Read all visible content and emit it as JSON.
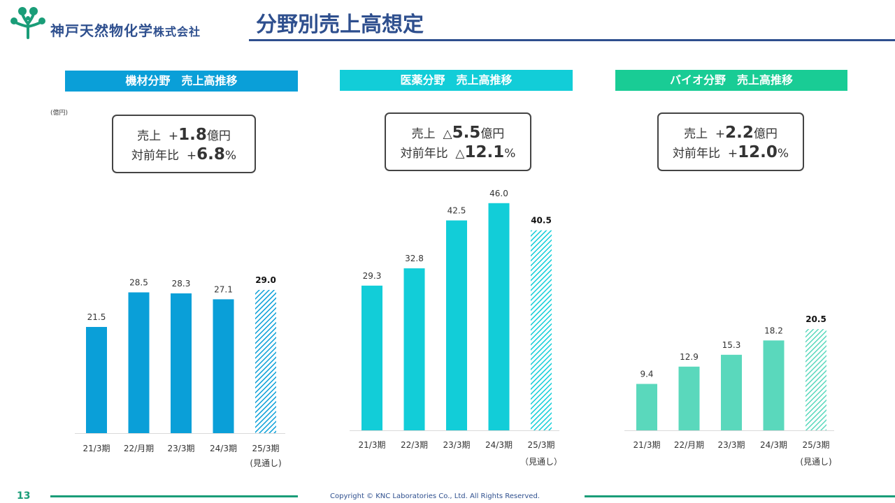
{
  "header": {
    "company_name": "神戸天然物化学",
    "company_suffix": "株式会社",
    "page_title": "分野別売上高想定"
  },
  "unit_label": "(億円)",
  "colors": {
    "brand_navy": "#2e4f8e",
    "brand_green": "#1a9d78",
    "equipment": "#0a9fd8",
    "pharma": "#12cdd8",
    "bio": "#5ad8bc",
    "bio_header": "#19cc95"
  },
  "panels": [
    {
      "header": "機材分野　売上高推移",
      "callout": {
        "sales_label": "売上",
        "sales_sign": "+",
        "sales_value": "1.8",
        "sales_unit": "億円",
        "yoy_label": "対前年比",
        "yoy_sign": "+",
        "yoy_value": "6.8",
        "yoy_unit": "%"
      }
    },
    {
      "header": "医薬分野　売上高推移",
      "callout": {
        "sales_label": "売上",
        "sales_sign": "△",
        "sales_value": "5.5",
        "sales_unit": "億円",
        "yoy_label": "対前年比",
        "yoy_sign": "△",
        "yoy_value": "12.1",
        "yoy_unit": "%"
      }
    },
    {
      "header": "バイオ分野　売上高推移",
      "callout": {
        "sales_label": "売上",
        "sales_sign": "+",
        "sales_value": "2.2",
        "sales_unit": "億円",
        "yoy_label": "対前年比",
        "yoy_sign": "+",
        "yoy_value": "12.0",
        "yoy_unit": "%"
      }
    }
  ],
  "chart_data": [
    {
      "type": "bar",
      "title": "機材分野　売上高推移",
      "categories": [
        "21/3期",
        "22/月期",
        "23/3期",
        "24/3期",
        "25/3期"
      ],
      "forecast_note": "(見通し)",
      "values": [
        21.5,
        28.5,
        28.3,
        27.1,
        29.0
      ],
      "value_labels": [
        "21.5",
        "28.5",
        "28.3",
        "27.1",
        "29.0"
      ],
      "forecast_index": 4,
      "color": "#0a9fd8",
      "ylabel": "(億円)"
    },
    {
      "type": "bar",
      "title": "医薬分野　売上高推移",
      "categories": [
        "21/3期",
        "22/3期",
        "23/3期",
        "24/3期",
        "25/3期"
      ],
      "forecast_note": "（見通し）",
      "values": [
        29.3,
        32.8,
        42.5,
        46.0,
        40.5
      ],
      "value_labels": [
        "29.3",
        "32.8",
        "42.5",
        "46.0",
        "40.5"
      ],
      "forecast_index": 4,
      "color": "#12cdd8"
    },
    {
      "type": "bar",
      "title": "バイオ分野　売上高推移",
      "categories": [
        "21/3期",
        "22/月期",
        "23/3期",
        "24/3期",
        "25/3期"
      ],
      "forecast_note": "(見通し)",
      "values": [
        9.4,
        12.9,
        15.3,
        18.2,
        20.5
      ],
      "value_labels": [
        "9.4",
        "12.9",
        "15.3",
        "18.2",
        "20.5"
      ],
      "forecast_index": 4,
      "color": "#5ad8bc"
    }
  ],
  "footer": {
    "page_number": "13",
    "copyright": "Copyright © KNC Laboratories Co., Ltd. All Rights Reserved."
  }
}
